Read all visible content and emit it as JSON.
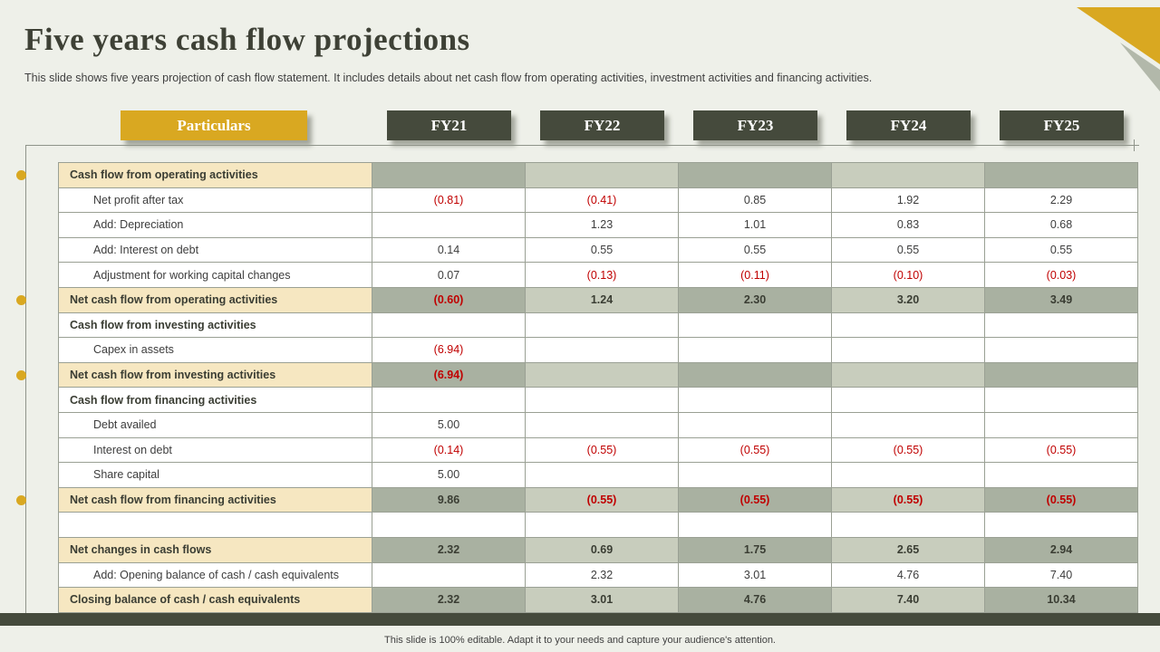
{
  "slide": {
    "title": "Five years cash flow projections",
    "subtitle": "This slide shows five years projection of cash flow statement. It includes details about net cash flow from operating activities, investment activities and financing activities.",
    "footer": "This slide is 100% editable.  Adapt it to your needs and capture your audience's attention."
  },
  "colors": {
    "accent_gold": "#D9A821",
    "header_dark": "#454A3C",
    "label_beige": "#F6E7C1",
    "cell_sage_dark": "#A9B1A1",
    "cell_sage_light": "#C8CDBD",
    "negative_red": "#C00000",
    "background": "#EEF0E9"
  },
  "table": {
    "header": {
      "particulars": "Particulars",
      "years": [
        "FY21",
        "FY22",
        "FY23",
        "FY24",
        "FY25"
      ]
    },
    "rows": [
      {
        "label": "Cash flow from operating activities",
        "type": "section-shaded",
        "values": [
          "",
          "",
          "",
          "",
          ""
        ]
      },
      {
        "label": "Net profit after tax",
        "type": "detail",
        "values": [
          "(0.81)",
          "(0.41)",
          "0.85",
          "1.92",
          "2.29"
        ]
      },
      {
        "label": "Add: Depreciation",
        "type": "detail",
        "values": [
          "",
          "1.23",
          "1.01",
          "0.83",
          "0.68"
        ]
      },
      {
        "label": "Add: Interest on debt",
        "type": "detail",
        "values": [
          "0.14",
          "0.55",
          "0.55",
          "0.55",
          "0.55"
        ]
      },
      {
        "label": "Adjustment for working capital changes",
        "type": "detail",
        "values": [
          "0.07",
          "(0.13)",
          "(0.11)",
          "(0.10)",
          "(0.03)"
        ]
      },
      {
        "label": "Net cash flow from operating activities",
        "type": "total",
        "values": [
          "(0.60)",
          "1.24",
          "2.30",
          "3.20",
          "3.49"
        ]
      },
      {
        "label": "Cash flow from investing activities",
        "type": "section-plain",
        "values": [
          "",
          "",
          "",
          "",
          ""
        ]
      },
      {
        "label": "Capex in assets",
        "type": "detail",
        "values": [
          "(6.94)",
          "",
          "",
          "",
          ""
        ]
      },
      {
        "label": "Net cash flow from investing activities",
        "type": "total",
        "values": [
          "(6.94)",
          "",
          "",
          "",
          ""
        ]
      },
      {
        "label": "Cash flow from financing activities",
        "type": "section-plain",
        "values": [
          "",
          "",
          "",
          "",
          ""
        ]
      },
      {
        "label": "Debt availed",
        "type": "detail",
        "values": [
          "5.00",
          "",
          "",
          "",
          ""
        ]
      },
      {
        "label": "Interest on debt",
        "type": "detail",
        "values": [
          "(0.14)",
          "(0.55)",
          "(0.55)",
          "(0.55)",
          "(0.55)"
        ]
      },
      {
        "label": "Share capital",
        "type": "detail",
        "values": [
          "5.00",
          "",
          "",
          "",
          ""
        ]
      },
      {
        "label": "Net cash flow from financing activities",
        "type": "total",
        "values": [
          "9.86",
          "(0.55)",
          "(0.55)",
          "(0.55)",
          "(0.55)"
        ]
      },
      {
        "label": "",
        "type": "empty",
        "values": [
          "",
          "",
          "",
          "",
          ""
        ]
      },
      {
        "label": "Net changes in cash flows",
        "type": "total",
        "values": [
          "2.32",
          "0.69",
          "1.75",
          "2.65",
          "2.94"
        ]
      },
      {
        "label": "Add: Opening balance of cash / cash equivalents",
        "type": "detail",
        "values": [
          "",
          "2.32",
          "3.01",
          "4.76",
          "7.40"
        ]
      },
      {
        "label": "Closing balance of cash / cash equivalents",
        "type": "total",
        "values": [
          "2.32",
          "3.01",
          "4.76",
          "7.40",
          "10.34"
        ]
      }
    ]
  }
}
